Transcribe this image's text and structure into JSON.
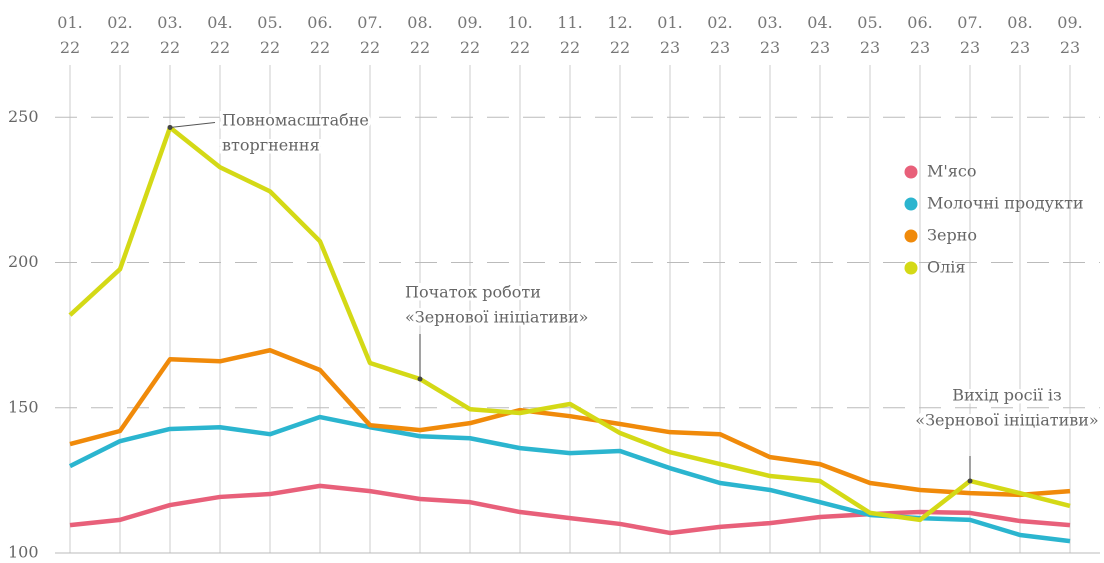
{
  "chart_data": {
    "type": "line",
    "categories": [
      "01. 22",
      "02. 22",
      "03. 22",
      "04. 22",
      "05. 22",
      "06. 22",
      "07. 22",
      "08. 22",
      "09. 22",
      "10. 22",
      "11. 22",
      "12. 22",
      "01. 23",
      "02. 23",
      "03. 23",
      "04. 23",
      "05. 23",
      "06. 23",
      "07. 23",
      "08. 23",
      "09. 23"
    ],
    "series": [
      {
        "name": "М'ясо",
        "color": "#e8607a",
        "values": [
          109.6,
          111.4,
          116.5,
          119.3,
          120.3,
          123.1,
          121.3,
          118.6,
          117.5,
          114.1,
          112.0,
          110.0,
          106.9,
          109.0,
          110.3,
          112.4,
          113.4,
          114.1,
          113.8,
          111.0,
          109.6
        ]
      },
      {
        "name": "Молочні продукти",
        "color": "#2bb5cf",
        "values": [
          129.9,
          138.5,
          142.7,
          143.3,
          140.9,
          146.8,
          143.3,
          140.2,
          139.5,
          136.1,
          134.4,
          135.1,
          129.2,
          124.1,
          121.7,
          117.5,
          113.1,
          112.0,
          111.4,
          106.2,
          104.1
        ]
      },
      {
        "name": "Зерно",
        "color": "#f08a0a",
        "values": [
          137.5,
          142.0,
          166.7,
          166.0,
          169.8,
          163.0,
          144.0,
          142.3,
          144.7,
          149.2,
          147.1,
          144.4,
          141.6,
          140.9,
          133.0,
          130.6,
          124.1,
          121.7,
          120.6,
          120.0,
          121.3
        ]
      },
      {
        "name": "Олія",
        "color": "#d4d916",
        "values": [
          181.9,
          197.7,
          246.5,
          232.8,
          224.5,
          207.3,
          165.4,
          159.9,
          149.5,
          148.2,
          151.3,
          141.3,
          134.7,
          130.6,
          126.5,
          124.8,
          113.8,
          111.4,
          124.8,
          120.6,
          116.2
        ]
      }
    ],
    "ylim": [
      100,
      268
    ],
    "yticks": [
      100,
      150,
      200,
      250
    ],
    "grid": true,
    "annotations": [
      {
        "x": "03. 22",
        "series": "Олія",
        "text": [
          "Повномасштабне",
          "вторгнення"
        ]
      },
      {
        "x": "08. 22",
        "series": "Олія",
        "text": [
          "Початок роботи",
          "«Зернової ініціативи»"
        ]
      },
      {
        "x": "07. 23",
        "series": "Олія",
        "text": [
          "Вихід росії із",
          "«Зернової ініціативи»"
        ]
      }
    ]
  }
}
